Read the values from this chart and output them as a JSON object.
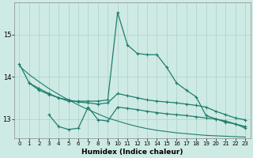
{
  "xlabel": "Humidex (Indice chaleur)",
  "bg_color": "#ceeae4",
  "grid_color": "#afd0ca",
  "line_color": "#1e7d6e",
  "xlim": [
    -0.5,
    23.5
  ],
  "ylim": [
    12.55,
    15.75
  ],
  "yticks": [
    13,
    14,
    15
  ],
  "xticks": [
    0,
    1,
    2,
    3,
    4,
    5,
    6,
    7,
    8,
    9,
    10,
    11,
    12,
    13,
    14,
    15,
    16,
    17,
    18,
    19,
    20,
    21,
    22,
    23
  ],
  "lineA_x": [
    0,
    1,
    2,
    3,
    4,
    5,
    6,
    7,
    8,
    9,
    10,
    11,
    12,
    13,
    14,
    15,
    16,
    17,
    18,
    19,
    20,
    21,
    22,
    23
  ],
  "lineA_y": [
    14.3,
    13.85,
    13.72,
    13.6,
    13.5,
    13.42,
    13.42,
    13.42,
    13.42,
    13.45,
    15.52,
    14.75,
    14.55,
    14.52,
    14.52,
    14.22,
    13.85,
    13.68,
    13.52,
    13.08,
    13.0,
    12.92,
    12.88,
    12.78
  ],
  "lineB_x": [
    1,
    2,
    3,
    4,
    5,
    6,
    7,
    8,
    9,
    10,
    11,
    12,
    13,
    14,
    15,
    16,
    17,
    18,
    19,
    20,
    21,
    22,
    23
  ],
  "lineB_y": [
    13.85,
    13.68,
    13.58,
    13.5,
    13.45,
    13.4,
    13.38,
    13.35,
    13.38,
    13.6,
    13.55,
    13.5,
    13.45,
    13.42,
    13.4,
    13.38,
    13.35,
    13.32,
    13.28,
    13.18,
    13.1,
    13.02,
    12.98
  ],
  "lineC_x": [
    3,
    4,
    5,
    6,
    7,
    8,
    9,
    10,
    11,
    12,
    13,
    14,
    15,
    16,
    17,
    18,
    19,
    20,
    21,
    22,
    23
  ],
  "lineC_y": [
    13.1,
    12.82,
    12.75,
    12.78,
    13.28,
    12.98,
    12.95,
    13.28,
    13.25,
    13.22,
    13.18,
    13.15,
    13.12,
    13.1,
    13.08,
    13.05,
    13.02,
    13.0,
    12.95,
    12.88,
    12.82
  ],
  "lineD_x": [
    0,
    1,
    2,
    3,
    4,
    5,
    6,
    7,
    8,
    9,
    10,
    11,
    12,
    13,
    14,
    15,
    16,
    17,
    18,
    19,
    20,
    21,
    22,
    23
  ],
  "lineD_y": [
    14.25,
    14.05,
    13.88,
    13.72,
    13.58,
    13.45,
    13.33,
    13.22,
    13.12,
    13.02,
    12.95,
    12.88,
    12.82,
    12.77,
    12.73,
    12.7,
    12.67,
    12.65,
    12.63,
    12.61,
    12.6,
    12.59,
    12.58,
    12.57
  ]
}
